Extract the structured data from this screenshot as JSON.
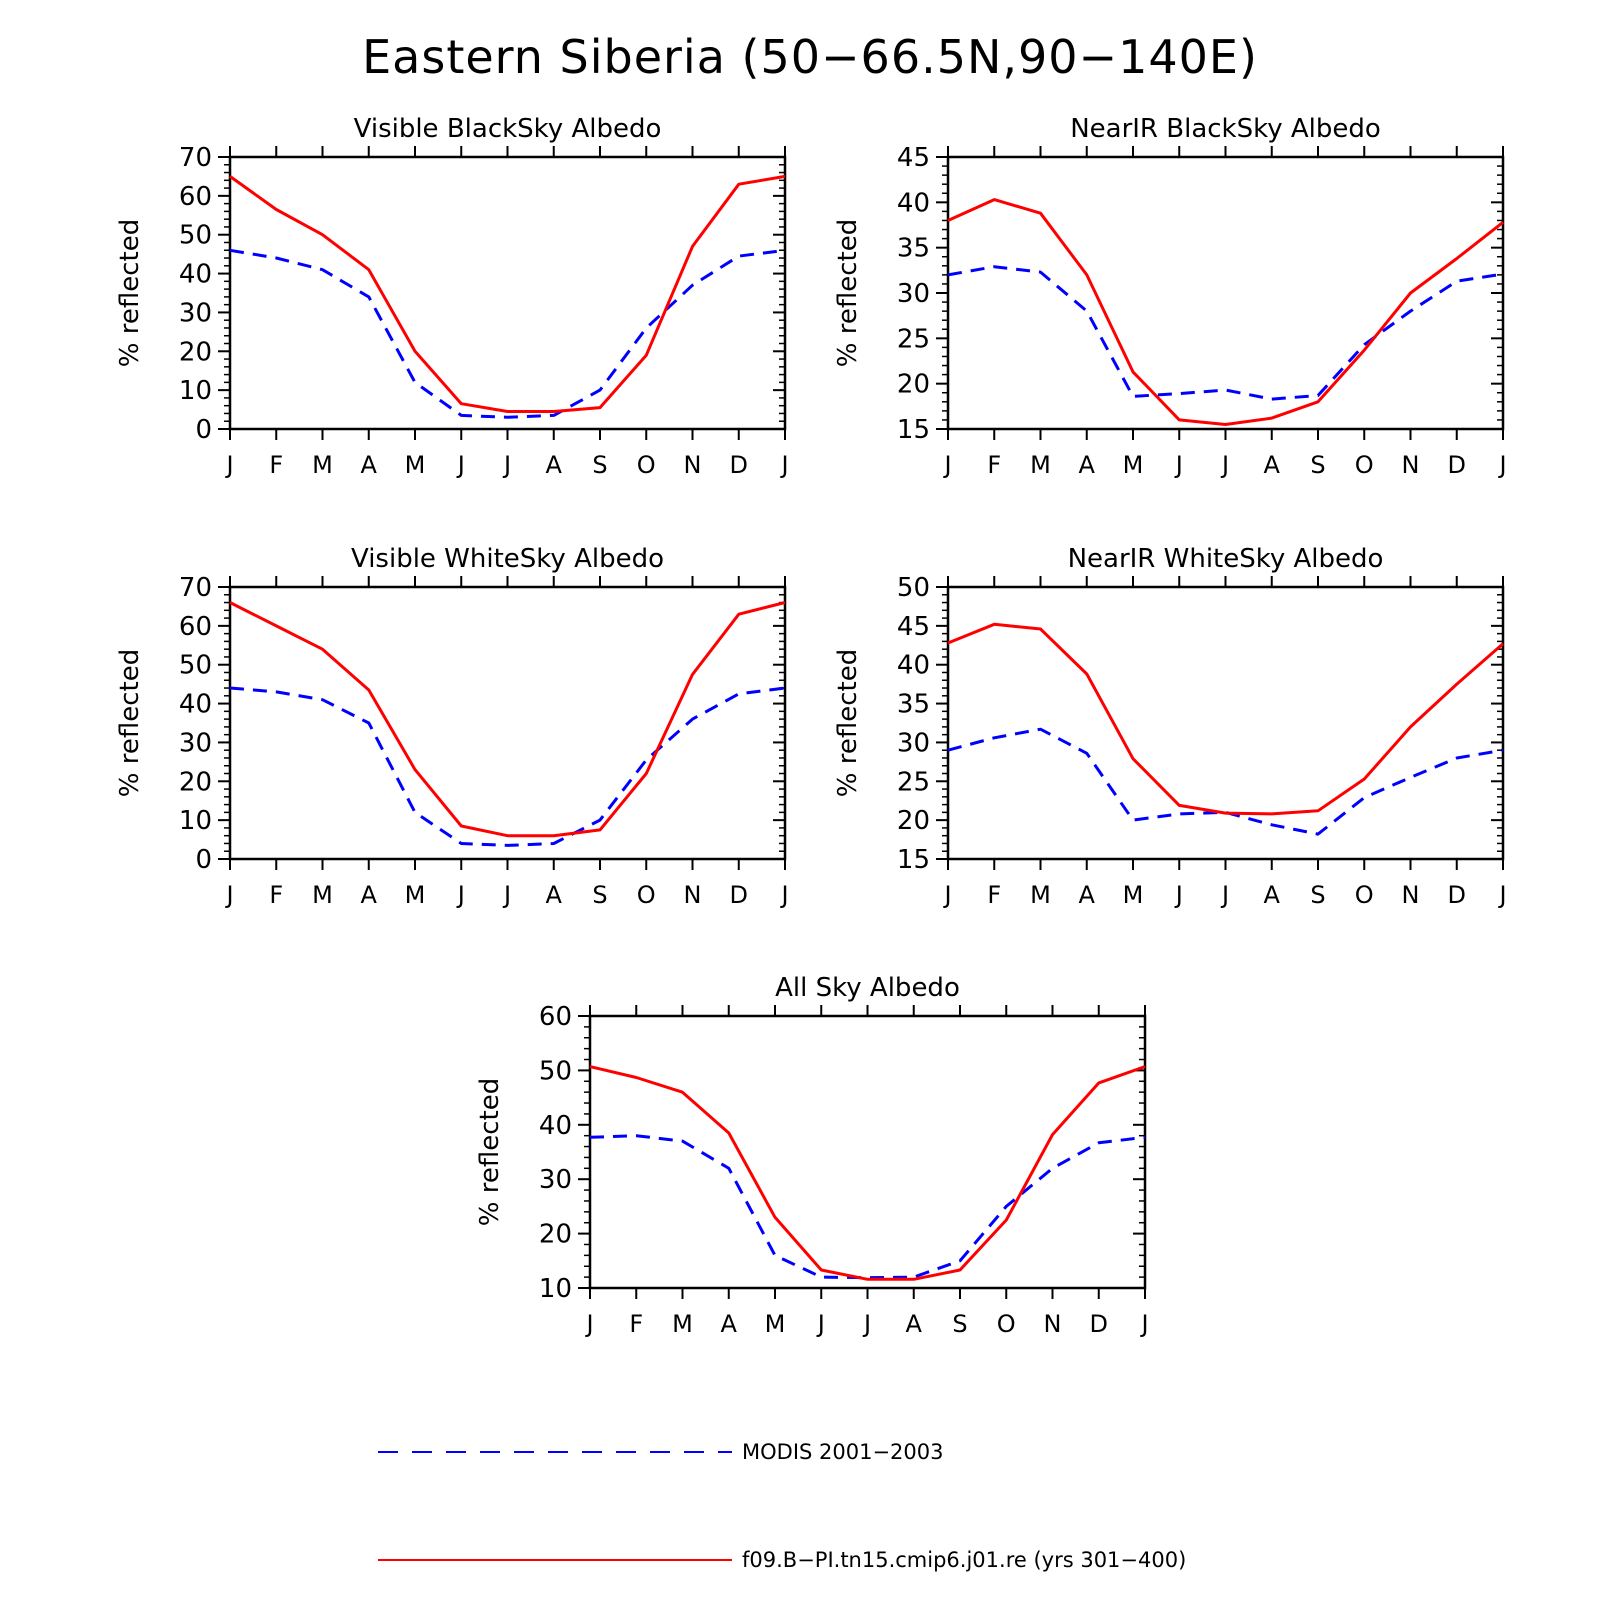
{
  "figure": {
    "title": "Eastern Siberia (50−66.5N,90−140E)"
  },
  "legend": {
    "items": [
      {
        "label": "MODIS 2001−2003",
        "color": "#0000ff",
        "dash": "dashed"
      },
      {
        "label": "f09.B−PI.tn15.cmip6.j01.re (yrs 301−400)",
        "color": "#ff0000",
        "dash": "solid"
      }
    ]
  },
  "chart_data": [
    {
      "type": "line",
      "title": "Visible BlackSky Albedo",
      "ylabel": "% reflected",
      "xlabel": "",
      "categories": [
        "J",
        "F",
        "M",
        "A",
        "M",
        "J",
        "J",
        "A",
        "S",
        "O",
        "N",
        "D",
        "J"
      ],
      "ylim": [
        0,
        70
      ],
      "yticks": [
        0,
        10,
        20,
        30,
        40,
        50,
        60,
        70
      ],
      "series": [
        {
          "name": "f09.B−PI.tn15.cmip6.j01.re (yrs 301−400)",
          "color": "#ff0000",
          "style": "solid",
          "values": [
            65,
            56.5,
            50,
            41,
            20,
            6.5,
            4.5,
            4.5,
            5.5,
            19,
            47,
            63,
            65
          ]
        },
        {
          "name": "MODIS 2001−2003",
          "color": "#0000ff",
          "style": "dashed",
          "values": [
            46,
            44,
            41,
            34,
            12,
            3.5,
            3,
            3.5,
            10,
            26,
            37,
            44.5,
            46
          ]
        }
      ]
    },
    {
      "type": "line",
      "title": "NearIR BlackSky Albedo",
      "ylabel": "% reflected",
      "xlabel": "",
      "categories": [
        "J",
        "F",
        "M",
        "A",
        "M",
        "J",
        "J",
        "A",
        "S",
        "O",
        "N",
        "D",
        "J"
      ],
      "ylim": [
        15,
        45
      ],
      "yticks": [
        15,
        20,
        25,
        30,
        35,
        40,
        45
      ],
      "series": [
        {
          "name": "f09.B−PI.tn15.cmip6.j01.re (yrs 301−400)",
          "color": "#ff0000",
          "style": "solid",
          "values": [
            38,
            40.3,
            38.8,
            32,
            21.3,
            16,
            15.5,
            16.2,
            18,
            23.7,
            30,
            33.8,
            37.8
          ]
        },
        {
          "name": "MODIS 2001−2003",
          "color": "#0000ff",
          "style": "dashed",
          "values": [
            32,
            32.9,
            32.3,
            28,
            18.6,
            18.9,
            19.3,
            18.3,
            18.7,
            24.3,
            28,
            31.3,
            32.1
          ]
        }
      ]
    },
    {
      "type": "line",
      "title": "Visible WhiteSky Albedo",
      "ylabel": "% reflected",
      "xlabel": "",
      "categories": [
        "J",
        "F",
        "M",
        "A",
        "M",
        "J",
        "J",
        "A",
        "S",
        "O",
        "N",
        "D",
        "J"
      ],
      "ylim": [
        0,
        70
      ],
      "yticks": [
        0,
        10,
        20,
        30,
        40,
        50,
        60,
        70
      ],
      "series": [
        {
          "name": "f09.B−PI.tn15.cmip6.j01.re (yrs 301−400)",
          "color": "#ff0000",
          "style": "solid",
          "values": [
            66,
            60,
            54,
            43.5,
            23,
            8.5,
            6,
            6,
            7.5,
            22,
            47.5,
            63,
            66
          ]
        },
        {
          "name": "MODIS 2001−2003",
          "color": "#0000ff",
          "style": "dashed",
          "values": [
            44,
            43,
            41,
            35,
            12,
            4,
            3.5,
            4,
            10,
            25.5,
            36,
            42.5,
            44
          ]
        }
      ]
    },
    {
      "type": "line",
      "title": "NearIR WhiteSky Albedo",
      "ylabel": "% reflected",
      "xlabel": "",
      "categories": [
        "J",
        "F",
        "M",
        "A",
        "M",
        "J",
        "J",
        "A",
        "S",
        "O",
        "N",
        "D",
        "J"
      ],
      "ylim": [
        15,
        50
      ],
      "yticks": [
        15,
        20,
        25,
        30,
        35,
        40,
        45,
        50
      ],
      "series": [
        {
          "name": "f09.B−PI.tn15.cmip6.j01.re (yrs 301−400)",
          "color": "#ff0000",
          "style": "solid",
          "values": [
            42.8,
            45.2,
            44.6,
            38.8,
            27.9,
            21.9,
            20.9,
            20.8,
            21.2,
            25.3,
            32,
            37.5,
            42.7
          ]
        },
        {
          "name": "MODIS 2001−2003",
          "color": "#0000ff",
          "style": "dashed",
          "values": [
            29,
            30.6,
            31.7,
            28.6,
            20,
            20.8,
            21,
            19.4,
            18.2,
            22.9,
            25.5,
            28,
            29
          ]
        }
      ]
    },
    {
      "type": "line",
      "title": "All Sky Albedo",
      "ylabel": "% reflected",
      "xlabel": "",
      "categories": [
        "J",
        "F",
        "M",
        "A",
        "M",
        "J",
        "J",
        "A",
        "S",
        "O",
        "N",
        "D",
        "J"
      ],
      "ylim": [
        10,
        60
      ],
      "yticks": [
        10,
        20,
        30,
        40,
        50,
        60
      ],
      "series": [
        {
          "name": "f09.B−PI.tn15.cmip6.j01.re (yrs 301−400)",
          "color": "#ff0000",
          "style": "solid",
          "values": [
            50.7,
            48.7,
            46,
            38.5,
            23,
            13.3,
            11.6,
            11.6,
            13.3,
            22.5,
            38.2,
            47.7,
            50.7
          ]
        },
        {
          "name": "MODIS 2001−2003",
          "color": "#0000ff",
          "style": "dashed",
          "values": [
            37.7,
            38,
            37,
            32,
            16,
            12,
            11.9,
            12,
            15,
            25,
            32,
            36.7,
            37.7
          ]
        }
      ]
    }
  ]
}
